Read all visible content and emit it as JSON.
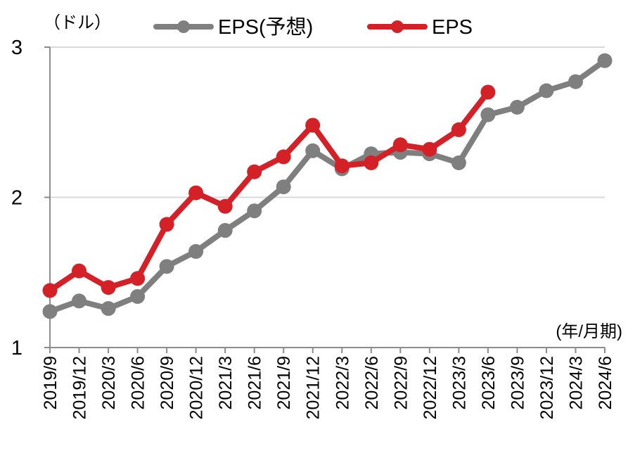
{
  "chart_data": {
    "type": "line",
    "unit_label": "（ドル）",
    "x_unit_label": "(年/月期)",
    "categories": [
      "2019/9",
      "2019/12",
      "2020/3",
      "2020/6",
      "2020/9",
      "2020/12",
      "2021/3",
      "2021/6",
      "2021/9",
      "2021/12",
      "2022/3",
      "2022/6",
      "2022/9",
      "2022/12",
      "2023/3",
      "2023/6",
      "2023/9",
      "2023/12",
      "2024/3",
      "2024/6"
    ],
    "ylim": [
      1,
      3
    ],
    "yticks": [
      1,
      2,
      3
    ],
    "grid": true,
    "legend_position": "top",
    "series": [
      {
        "name": "EPS(予想)",
        "color": "#7f7f7f",
        "values": [
          1.24,
          1.31,
          1.26,
          1.34,
          1.54,
          1.64,
          1.78,
          1.91,
          2.07,
          2.31,
          2.19,
          2.29,
          2.3,
          2.29,
          2.23,
          2.55,
          2.6,
          2.71,
          2.77,
          2.91
        ]
      },
      {
        "name": "EPS",
        "color": "#d42027",
        "values": [
          1.38,
          1.51,
          1.4,
          1.46,
          1.82,
          2.03,
          1.94,
          2.17,
          2.27,
          2.48,
          2.21,
          2.23,
          2.35,
          2.32,
          2.45,
          2.7,
          null,
          null,
          null,
          null
        ]
      }
    ]
  }
}
